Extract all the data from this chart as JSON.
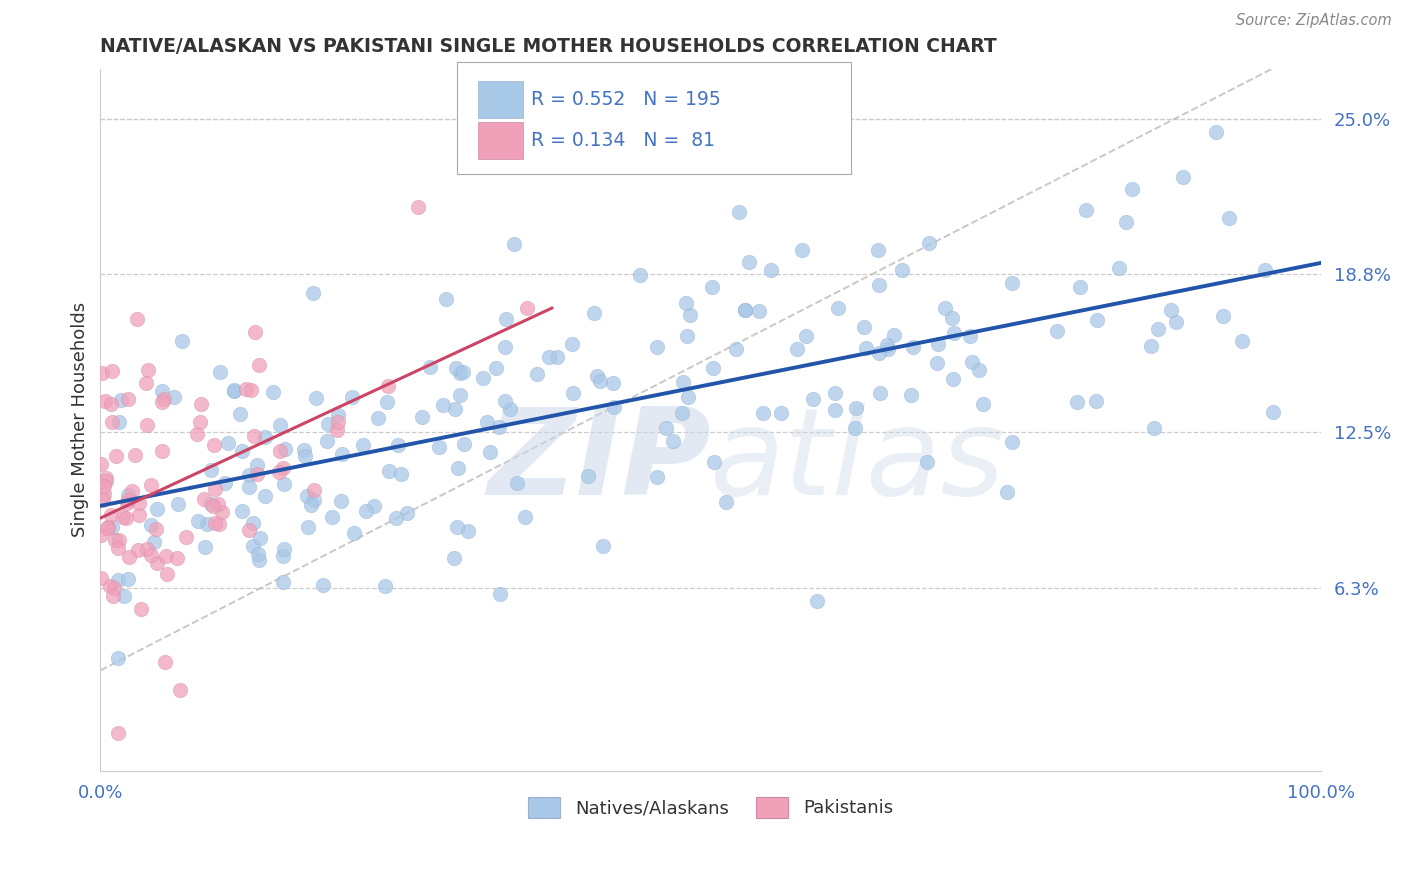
{
  "title": "NATIVE/ALASKAN VS PAKISTANI SINGLE MOTHER HOUSEHOLDS CORRELATION CHART",
  "source": "Source: ZipAtlas.com",
  "ylabel": "Single Mother Households",
  "ytick_labels": [
    "6.3%",
    "12.5%",
    "18.8%",
    "25.0%"
  ],
  "ytick_values": [
    0.063,
    0.125,
    0.188,
    0.25
  ],
  "legend_label1": "Natives/Alaskans",
  "legend_label2": "Pakistanis",
  "R1": 0.552,
  "N1": 195,
  "R2": 0.134,
  "N2": 81,
  "color_blue": "#a8c8e8",
  "color_blue_line": "#2255aa",
  "color_pink": "#f0a0b8",
  "color_pink_line": "#cc4466",
  "color_dashed": "#cccccc",
  "color_tick": "#4472c4",
  "watermark_color": "#ccd8e8",
  "background": "#ffffff",
  "xlim": [
    0.0,
    1.0
  ],
  "ylim": [
    -0.01,
    0.27
  ]
}
